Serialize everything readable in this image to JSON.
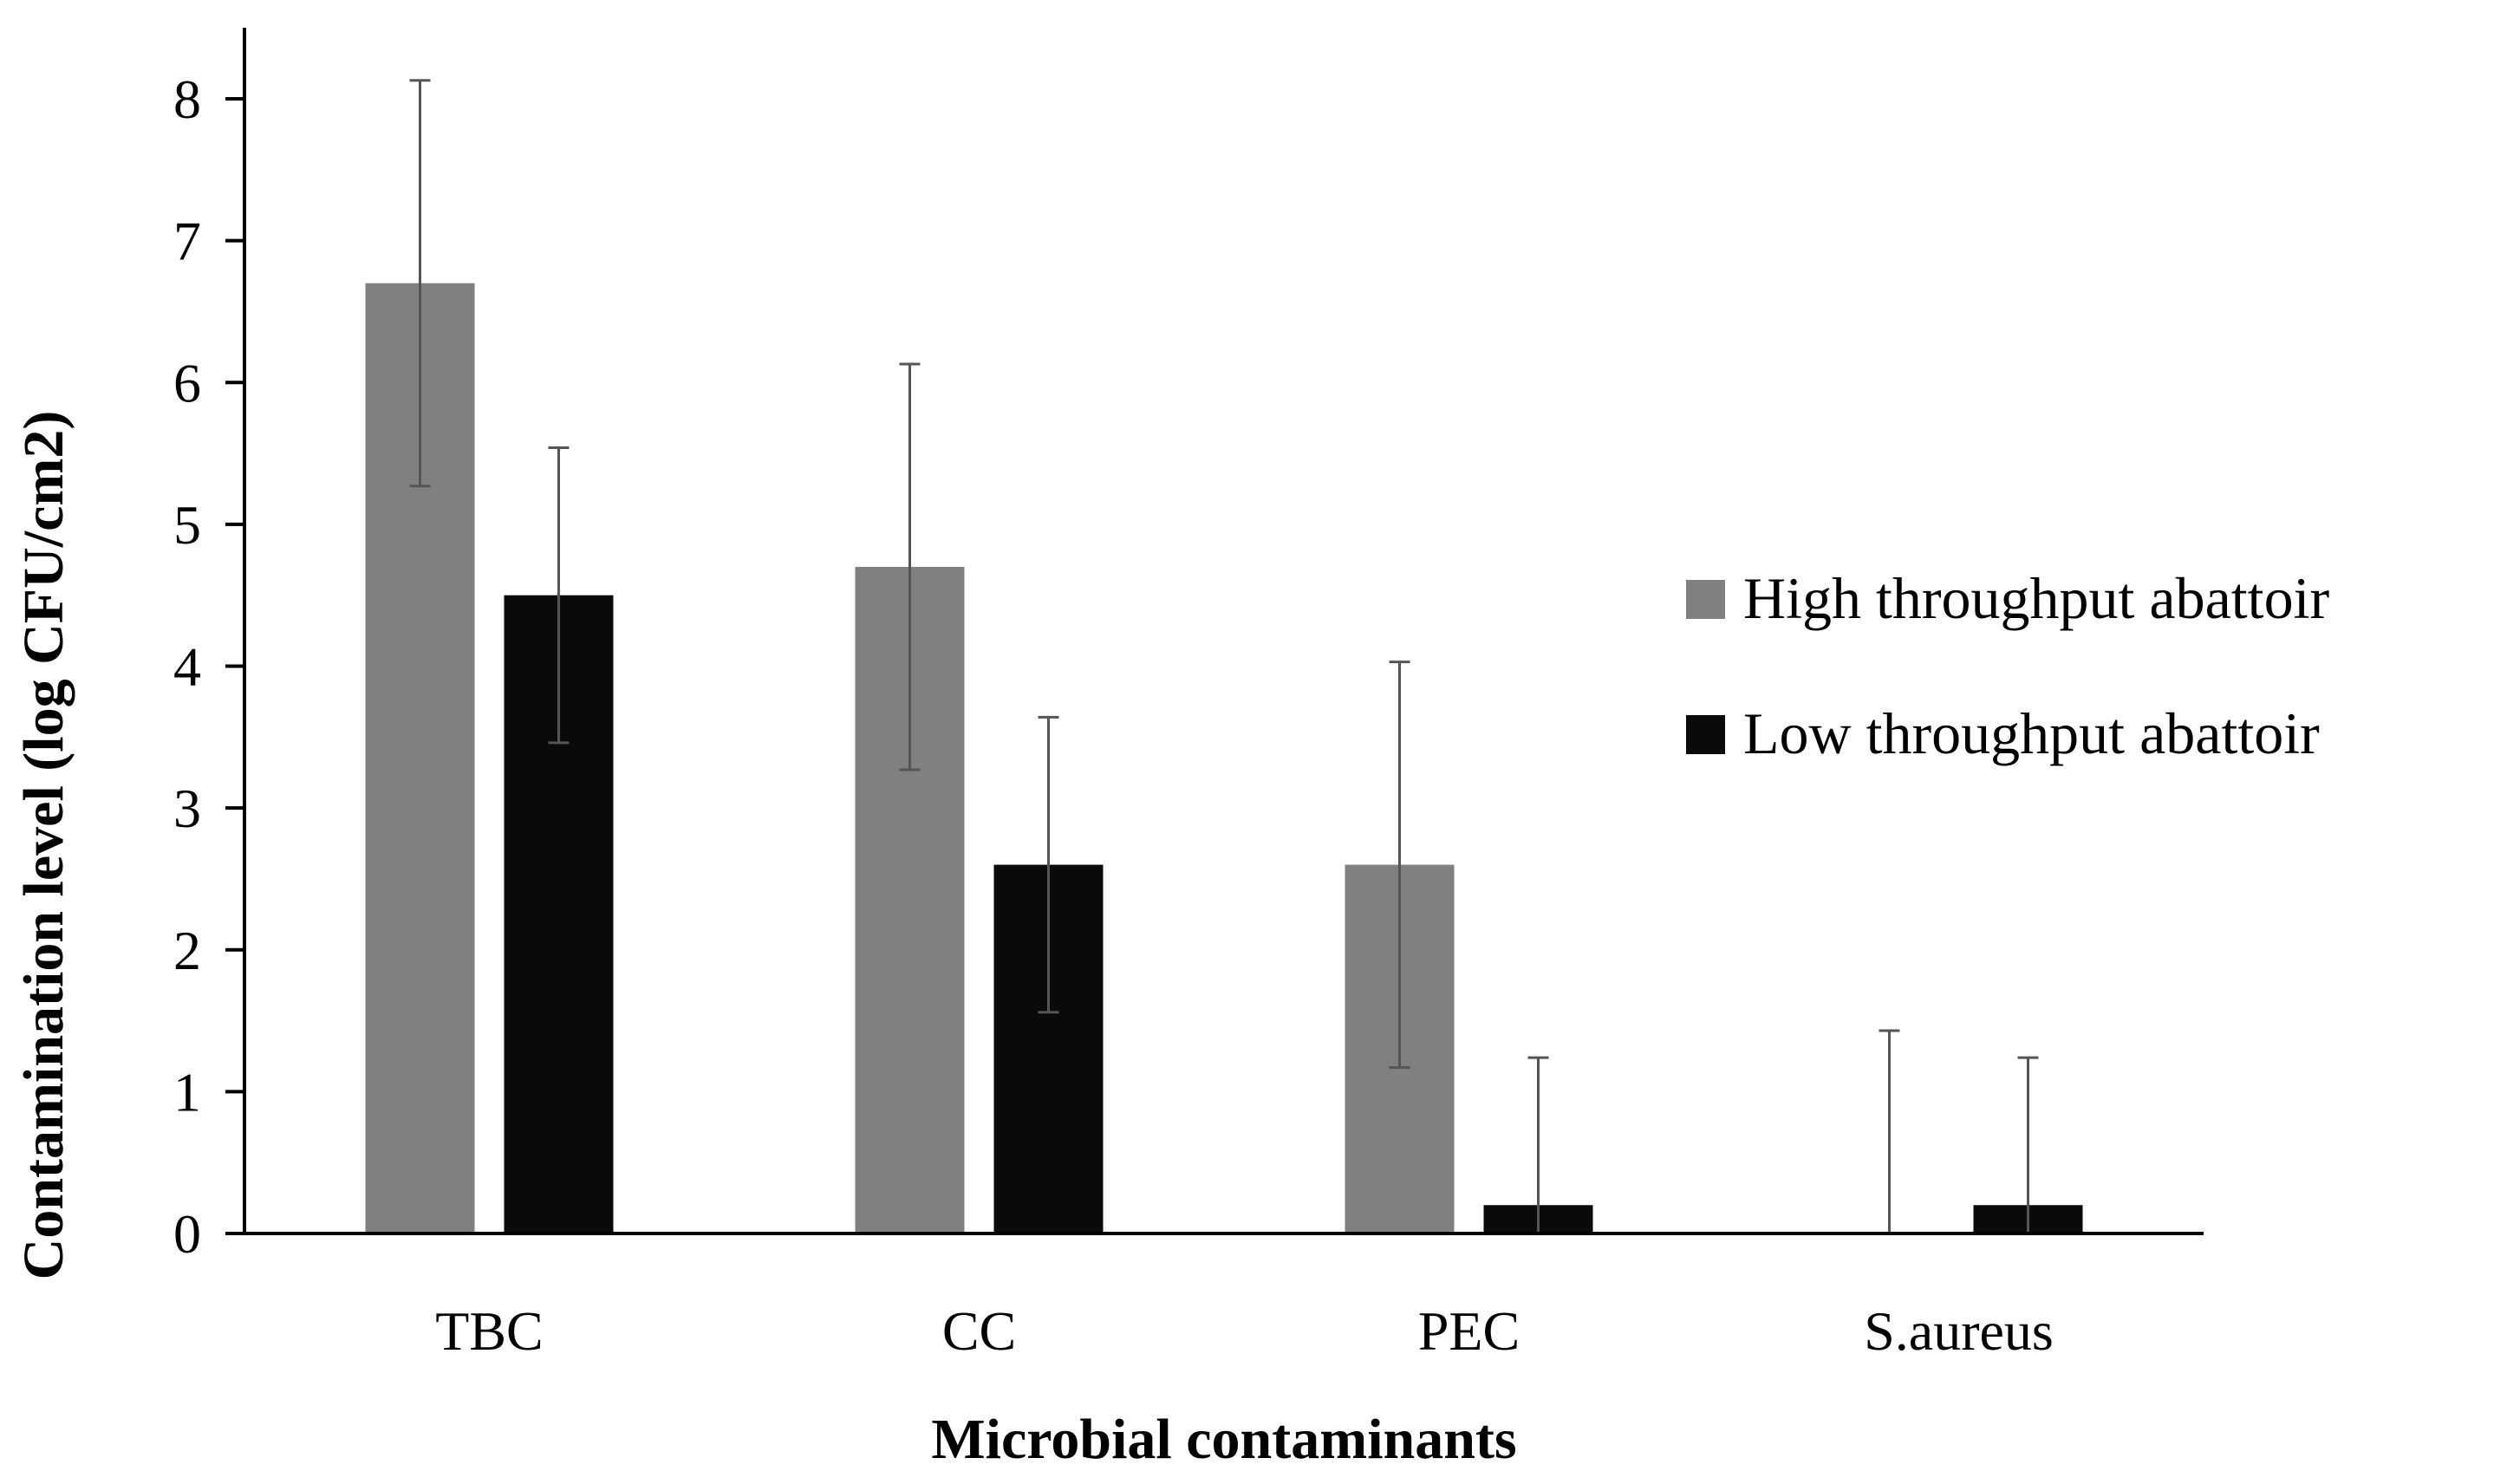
{
  "chart_data": {
    "type": "bar",
    "title": "",
    "xlabel": "Microbial contaminants",
    "ylabel": "Contamination level (log  CFU/cm2)",
    "ylim": [
      0,
      8
    ],
    "yticks": [
      0,
      1,
      2,
      3,
      4,
      5,
      6,
      7,
      8
    ],
    "grid": false,
    "legend_position": "right",
    "categories": [
      "TBC",
      "CC",
      "PEC",
      "S.aureus"
    ],
    "series": [
      {
        "name": "High throughput abattoir",
        "color": "#808080",
        "values": [
          6.7,
          4.7,
          2.6,
          0
        ],
        "error_low": [
          5.27,
          3.27,
          1.17,
          0
        ],
        "error_high": [
          8.13,
          6.13,
          4.03,
          1.43
        ]
      },
      {
        "name": "Low throughput abattoir",
        "color": "#0a0a0a",
        "values": [
          4.5,
          2.6,
          0.2,
          0.2
        ],
        "error_low": [
          3.46,
          1.56,
          0,
          0
        ],
        "error_high": [
          5.54,
          3.64,
          1.24,
          1.24
        ]
      }
    ]
  }
}
